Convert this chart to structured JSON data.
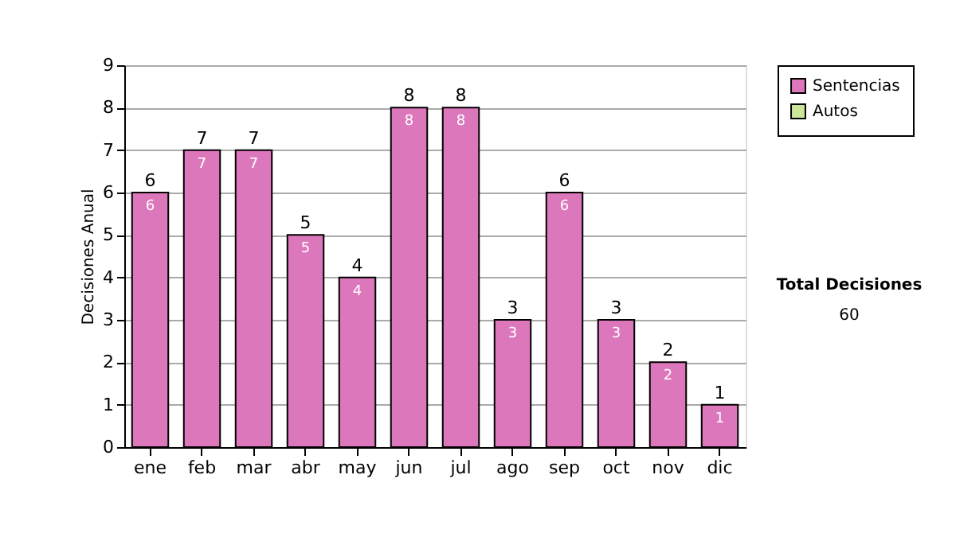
{
  "chart_data": {
    "type": "bar",
    "ylabel": "Decisiones Anual",
    "categories": [
      "ene",
      "feb",
      "mar",
      "abr",
      "may",
      "jun",
      "jul",
      "ago",
      "sep",
      "oct",
      "nov",
      "dic"
    ],
    "series": [
      {
        "name": "Sentencias",
        "color": "#dd77bb",
        "values": [
          6,
          7,
          7,
          5,
          4,
          8,
          8,
          3,
          6,
          3,
          2,
          1
        ]
      },
      {
        "name": "Autos",
        "color": "#cce699",
        "values": [
          null,
          null,
          null,
          null,
          null,
          null,
          null,
          null,
          null,
          null,
          null,
          null
        ]
      }
    ],
    "stacked": true,
    "data_labels": true,
    "totals": [
      "6",
      "7",
      "7",
      "5",
      "4",
      "8",
      "8",
      "3",
      "6",
      "3",
      "2",
      "1"
    ],
    "ylim": [
      0,
      9
    ],
    "yticks": [
      0,
      1,
      2,
      3,
      4,
      5,
      6,
      7,
      8,
      9
    ],
    "grid": "y",
    "legend": "right",
    "annotations": [
      "Total Decisiones",
      "60"
    ]
  }
}
